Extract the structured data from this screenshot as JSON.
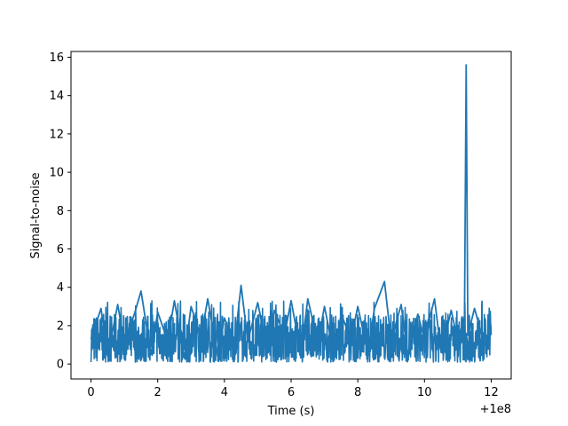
{
  "chart_data": {
    "type": "line",
    "title": "",
    "xlabel": "Time (s)",
    "ylabel": "Signal-to-noise",
    "x_offset_label": "+1e8",
    "xlim": [
      -0.6,
      12.6
    ],
    "ylim": [
      -0.78,
      16.3
    ],
    "xticks": [
      0,
      2,
      4,
      6,
      8,
      10,
      12
    ],
    "xtick_labels": [
      "0",
      "2",
      "4",
      "6",
      "8",
      "10",
      "12"
    ],
    "yticks": [
      0,
      2,
      4,
      6,
      8,
      10,
      12,
      14,
      16
    ],
    "ytick_labels": [
      "0",
      "2",
      "4",
      "6",
      "8",
      "10",
      "12",
      "14",
      "16"
    ],
    "grid": false,
    "series": [
      {
        "color": "#1f77b4",
        "x": [
          0,
          0.3,
          0.5,
          0.8,
          1.0,
          1.3,
          1.5,
          1.8,
          2.0,
          2.3,
          2.5,
          2.8,
          3.0,
          3.3,
          3.5,
          3.8,
          4.0,
          4.3,
          4.5,
          4.7,
          5.0,
          5.3,
          5.5,
          5.8,
          6.0,
          6.3,
          6.5,
          6.8,
          7.0,
          7.3,
          7.5,
          7.8,
          8.0,
          8.3,
          8.5,
          8.8,
          9.0,
          9.3,
          9.5,
          9.8,
          10.0,
          10.3,
          10.5,
          10.8,
          11.0,
          11.2,
          11.25,
          11.3,
          11.5,
          11.8,
          12.0
        ],
        "y": [
          1.3,
          2.9,
          0.4,
          3.1,
          1.1,
          2.6,
          3.8,
          0.5,
          2.7,
          1.2,
          3.3,
          0.3,
          3.0,
          1.4,
          3.4,
          0.4,
          2.4,
          1.0,
          4.1,
          1.2,
          3.2,
          0.6,
          2.8,
          1.5,
          3.3,
          0.5,
          3.4,
          1.1,
          3.0,
          0.4,
          2.6,
          1.3,
          3.0,
          0.6,
          2.9,
          4.3,
          1.2,
          3.1,
          0.5,
          2.6,
          1.3,
          3.4,
          0.6,
          2.8,
          1.2,
          2.5,
          15.6,
          1.5,
          2.9,
          1.0,
          1.8
        ]
      }
    ]
  }
}
